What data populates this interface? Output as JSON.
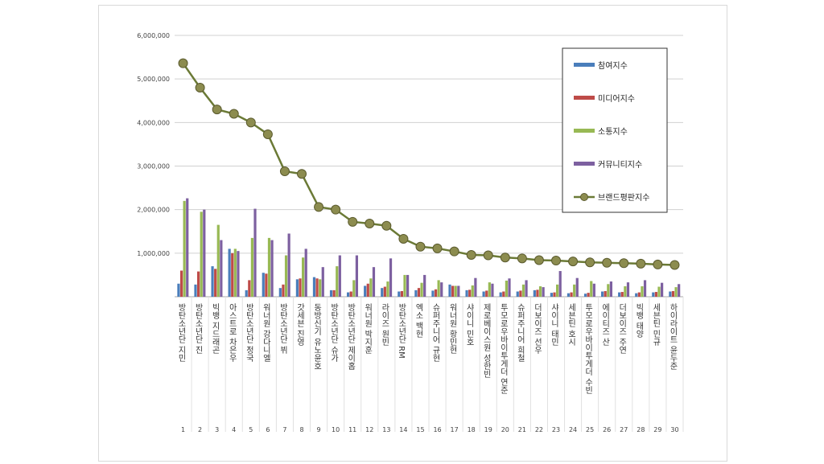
{
  "chart_data": {
    "type": "bar",
    "title": "",
    "xlabel": "",
    "ylabel": "",
    "ylim": [
      0,
      6000000
    ],
    "yticks": [
      "6,000,000",
      "5,000,000",
      "4,000,000",
      "3,000,000",
      "2,000,000",
      "1,000,000"
    ],
    "grid": true,
    "legend_position": "top-right",
    "x": [
      "1",
      "2",
      "3",
      "4",
      "5",
      "6",
      "7",
      "8",
      "9",
      "10",
      "11",
      "12",
      "13",
      "14",
      "15",
      "16",
      "17",
      "18",
      "19",
      "20",
      "21",
      "22",
      "23",
      "24",
      "25",
      "26",
      "27",
      "28",
      "29",
      "30"
    ],
    "categories": [
      "방탄소년단 지민",
      "방탄소년단 진",
      "빅뱅 지드래곤",
      "아스트로 차은우",
      "방탄소년단 정국",
      "워너원 강다니엘",
      "방탄소년단 뷔",
      "갓세븐 진영",
      "동방신기 유노윤호",
      "방탄소년단 슈가",
      "방탄소년단 제이홉",
      "워너원 박지훈",
      "라이즈 원빈",
      "방탄소년단 RM",
      "엑소 백현",
      "슈퍼주니어 규현",
      "워너원 황민현",
      "샤이니 민호",
      "제로베이스원 성한빈",
      "투모로우바이투게더 연준",
      "슈퍼주니어 희철",
      "더보이즈 선우",
      "샤이니 태민",
      "세븐틴 호시",
      "투모로우바이투게더 수빈",
      "에이티즈 산",
      "더보이즈 주연",
      "빅뱅 태양",
      "세븐틴 민규",
      "하이라이트 윤두준"
    ],
    "series": [
      {
        "name": "참여지수",
        "color": "#4a7ebb",
        "values": [
          300000,
          280000,
          700000,
          1100000,
          150000,
          550000,
          200000,
          400000,
          450000,
          150000,
          100000,
          250000,
          200000,
          120000,
          150000,
          140000,
          280000,
          150000,
          120000,
          100000,
          120000,
          150000,
          90000,
          80000,
          70000,
          120000,
          100000,
          80000,
          100000,
          120000
        ]
      },
      {
        "name": "미디어지수",
        "color": "#be4b48",
        "values": [
          600000,
          580000,
          640000,
          1000000,
          380000,
          530000,
          280000,
          420000,
          420000,
          150000,
          120000,
          300000,
          230000,
          130000,
          200000,
          170000,
          250000,
          160000,
          140000,
          120000,
          140000,
          160000,
          100000,
          100000,
          90000,
          130000,
          110000,
          100000,
          110000,
          130000
        ]
      },
      {
        "name": "소통지수",
        "color": "#98b954",
        "values": [
          2200000,
          1950000,
          1650000,
          1100000,
          1350000,
          1350000,
          950000,
          900000,
          400000,
          700000,
          380000,
          420000,
          350000,
          500000,
          320000,
          380000,
          250000,
          260000,
          330000,
          370000,
          280000,
          240000,
          280000,
          280000,
          360000,
          290000,
          240000,
          240000,
          230000,
          220000
        ]
      },
      {
        "name": "커뮤니티지수",
        "color": "#7d60a0",
        "values": [
          2260000,
          2000000,
          1300000,
          1050000,
          2020000,
          1300000,
          1450000,
          1100000,
          680000,
          950000,
          950000,
          680000,
          880000,
          500000,
          500000,
          330000,
          250000,
          430000,
          300000,
          420000,
          380000,
          220000,
          590000,
          430000,
          300000,
          350000,
          330000,
          380000,
          320000,
          290000
        ]
      },
      {
        "name": "브랜드평판지수",
        "color": "#6b7a36",
        "values": [
          5360000,
          4800000,
          4300000,
          4200000,
          4000000,
          3730000,
          2880000,
          2820000,
          2060000,
          2000000,
          1720000,
          1680000,
          1630000,
          1330000,
          1150000,
          1110000,
          1040000,
          960000,
          950000,
          900000,
          880000,
          840000,
          830000,
          810000,
          790000,
          780000,
          770000,
          760000,
          740000,
          730000
        ]
      }
    ]
  }
}
